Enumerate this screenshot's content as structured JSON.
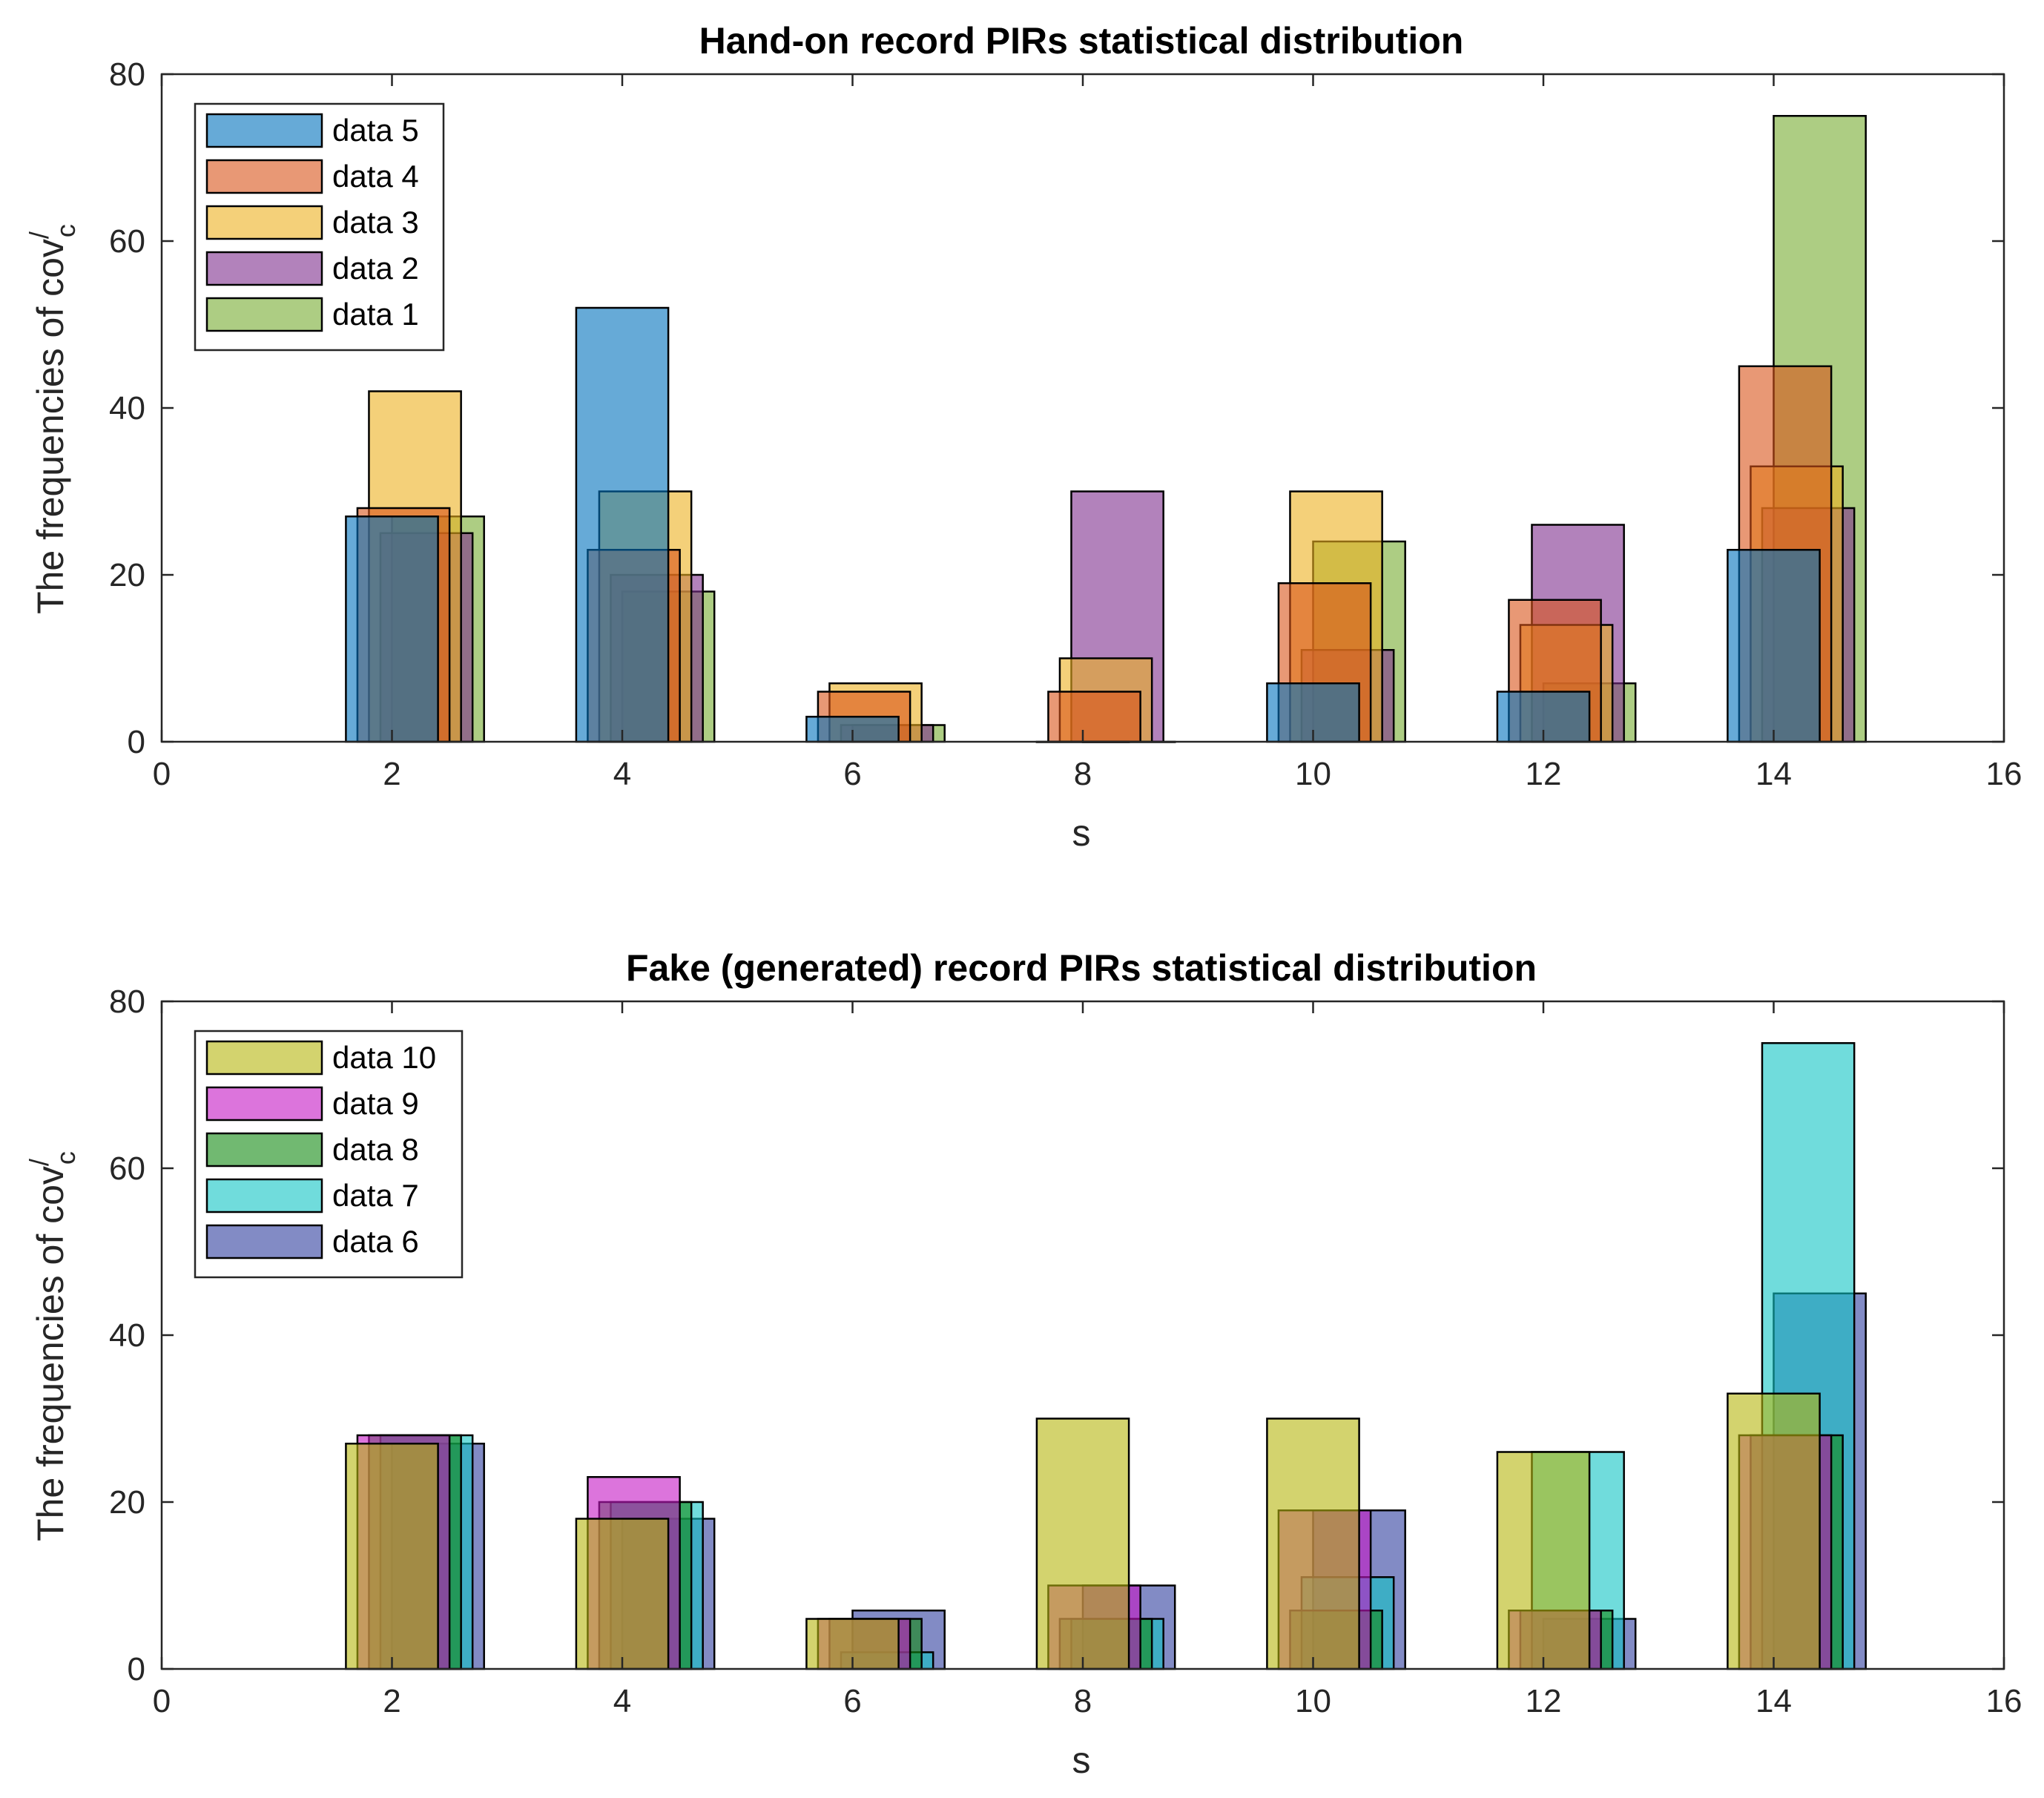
{
  "chart_data": [
    {
      "type": "bar",
      "title": "Hand-on record PIRs statistical distribution",
      "xlabel": "s",
      "ylabel": "The frequencies of cov'_c",
      "ylabel_main": "The frequencies of cov",
      "ylabel_sup": "/",
      "ylabel_sub": "c",
      "xlim": [
        0,
        16
      ],
      "ylim": [
        0,
        80
      ],
      "xticks": [
        "0",
        "2",
        "4",
        "6",
        "8",
        "10",
        "12",
        "14",
        "16"
      ],
      "yticks": [
        "0",
        "20",
        "40",
        "60",
        "80"
      ],
      "categories": [
        2,
        4,
        6,
        8,
        10,
        12,
        14
      ],
      "legend_location": "top-left",
      "series": [
        {
          "name": "data 1",
          "color": "#77AC30",
          "offset": 0.4,
          "values": [
            27,
            18,
            2,
            0,
            24,
            7,
            75
          ]
        },
        {
          "name": "data 2",
          "color": "#7E2F8E",
          "offset": 0.3,
          "values": [
            25,
            20,
            2,
            30,
            11,
            26,
            28
          ]
        },
        {
          "name": "data 3",
          "color": "#EDB120",
          "offset": 0.2,
          "values": [
            42,
            30,
            7,
            10,
            30,
            14,
            33
          ]
        },
        {
          "name": "data 4",
          "color": "#D95319",
          "offset": 0.1,
          "values": [
            28,
            23,
            6,
            6,
            19,
            17,
            45
          ]
        },
        {
          "name": "data 5",
          "color": "#0072BD",
          "offset": 0.0,
          "values": [
            27,
            52,
            3,
            0,
            7,
            6,
            23
          ]
        }
      ],
      "legend_order": [
        "data 5",
        "data 4",
        "data 3",
        "data 2",
        "data 1"
      ]
    },
    {
      "type": "bar",
      "title": "Fake (generated) record PIRs statistical distribution",
      "xlabel": "s",
      "ylabel": "The frequencies of cov'_c",
      "ylabel_main": "The frequencies of cov",
      "ylabel_sup": "/",
      "ylabel_sub": "c",
      "xlim": [
        0,
        16
      ],
      "ylim": [
        0,
        80
      ],
      "xticks": [
        "0",
        "2",
        "4",
        "6",
        "8",
        "10",
        "12",
        "14",
        "16"
      ],
      "yticks": [
        "0",
        "20",
        "40",
        "60",
        "80"
      ],
      "categories": [
        2,
        4,
        6,
        8,
        10,
        12,
        14
      ],
      "legend_location": "top-left",
      "series": [
        {
          "name": "data 6",
          "color": "#2E3E9E",
          "offset": 0.4,
          "values": [
            27,
            18,
            7,
            10,
            19,
            6,
            45
          ]
        },
        {
          "name": "data 7",
          "color": "#11C4C4",
          "offset": 0.3,
          "values": [
            28,
            20,
            2,
            6,
            11,
            26,
            75
          ]
        },
        {
          "name": "data 8",
          "color": "#138A13",
          "offset": 0.2,
          "values": [
            28,
            20,
            6,
            6,
            7,
            7,
            28
          ]
        },
        {
          "name": "data 9",
          "color": "#C517C5",
          "offset": 0.1,
          "values": [
            28,
            23,
            6,
            10,
            19,
            7,
            28
          ]
        },
        {
          "name": "data 10",
          "color": "#B5B50E",
          "offset": 0.0,
          "values": [
            27,
            18,
            6,
            30,
            30,
            26,
            33
          ]
        }
      ],
      "legend_order": [
        "data 10",
        "data 9",
        "data 8",
        "data 7",
        "data 6"
      ]
    }
  ]
}
